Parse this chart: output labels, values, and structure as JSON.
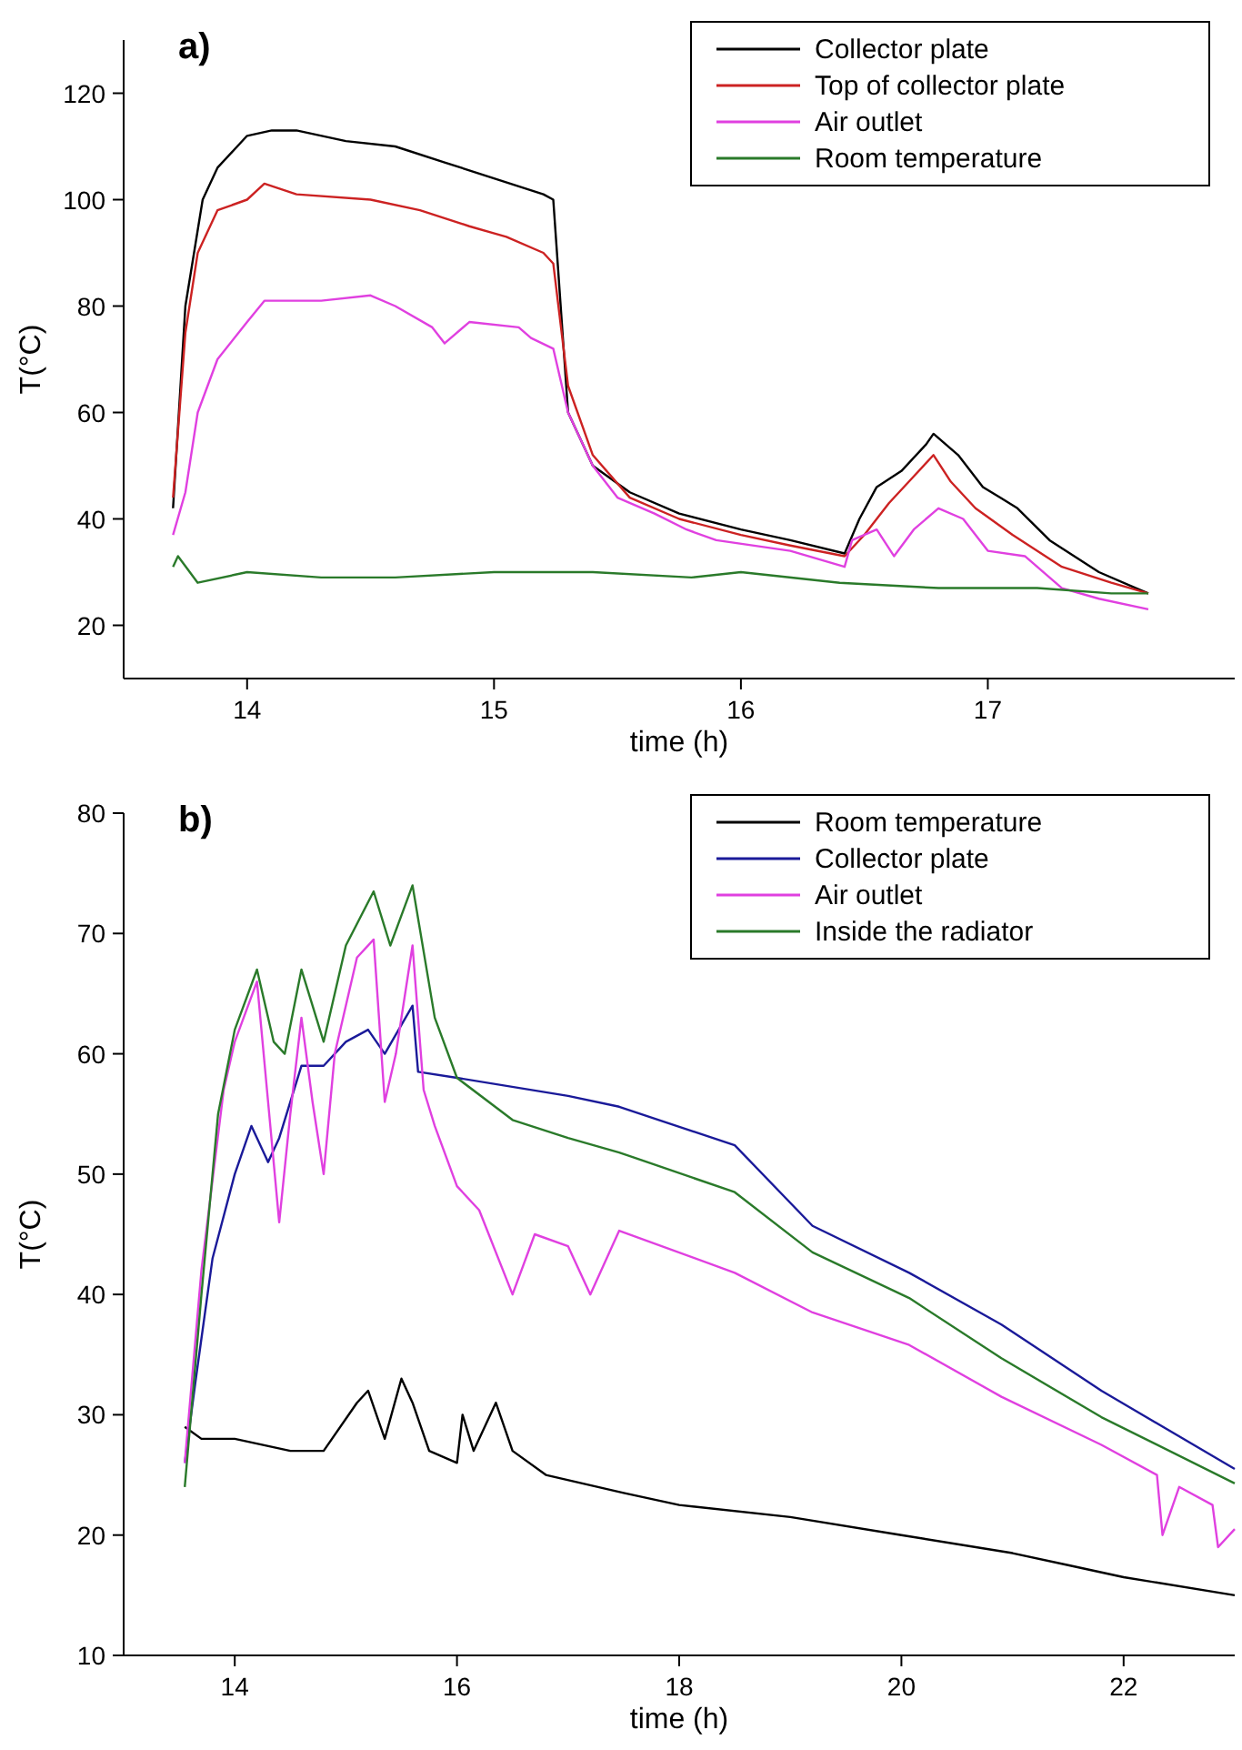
{
  "chart_data": [
    {
      "type": "line",
      "title": "a)",
      "xlabel": "time (h)",
      "ylabel": "T(°C)",
      "xlim": [
        13.5,
        18
      ],
      "ylim": [
        10,
        130
      ],
      "xticks": [
        14,
        15,
        16,
        17
      ],
      "yticks": [
        20,
        40,
        60,
        80,
        100,
        120
      ],
      "legend": "top right",
      "grid": false,
      "series": [
        {
          "name": "Collector plate",
          "color": "#000000",
          "x": [
            13.7,
            13.75,
            13.82,
            13.88,
            14.0,
            14.1,
            14.2,
            14.4,
            14.6,
            14.8,
            15.0,
            15.2,
            15.24,
            15.3,
            15.4,
            15.55,
            15.75,
            16.0,
            16.2,
            16.42,
            16.48,
            16.55,
            16.65,
            16.75,
            16.78,
            16.88,
            16.98,
            17.05,
            17.12,
            17.25,
            17.45,
            17.6,
            17.65
          ],
          "values": [
            42,
            80,
            100,
            106,
            112,
            113,
            113,
            111,
            110,
            107,
            104,
            101,
            100,
            60,
            50,
            45,
            41,
            38,
            36,
            33.5,
            40,
            46,
            49,
            54,
            56,
            52,
            46,
            44,
            42,
            36,
            30,
            27,
            26
          ]
        },
        {
          "name": "Top of collector plate",
          "color": "#cc2222",
          "x": [
            13.7,
            13.75,
            13.8,
            13.88,
            14.0,
            14.07,
            14.2,
            14.5,
            14.7,
            14.9,
            15.05,
            15.2,
            15.24,
            15.3,
            15.4,
            15.55,
            15.75,
            16.0,
            16.2,
            16.42,
            16.5,
            16.6,
            16.7,
            16.78,
            16.85,
            16.95,
            17.1,
            17.3,
            17.5,
            17.65
          ],
          "values": [
            44,
            75,
            90,
            98,
            100,
            103,
            101,
            100,
            98,
            95,
            93,
            90,
            88,
            65,
            52,
            44,
            40,
            37,
            35,
            33,
            37,
            43,
            48,
            52,
            47,
            42,
            37,
            31,
            28,
            26
          ]
        },
        {
          "name": "Air outlet",
          "color": "#e040e0",
          "x": [
            13.7,
            13.75,
            13.8,
            13.88,
            14.0,
            14.07,
            14.3,
            14.5,
            14.6,
            14.75,
            14.8,
            14.9,
            15.1,
            15.15,
            15.24,
            15.3,
            15.4,
            15.5,
            15.65,
            15.78,
            15.9,
            16.2,
            16.42,
            16.45,
            16.55,
            16.62,
            16.7,
            16.8,
            16.9,
            17.0,
            17.15,
            17.3,
            17.45,
            17.65
          ],
          "values": [
            37,
            45,
            60,
            70,
            77,
            81,
            81,
            82,
            80,
            76,
            73,
            77,
            76,
            74,
            72,
            60,
            50,
            44,
            41,
            38,
            36,
            34,
            31,
            36,
            38,
            33,
            38,
            42,
            40,
            34,
            33,
            27,
            25,
            23
          ]
        },
        {
          "name": "Room temperature",
          "color": "#2a7a2a",
          "x": [
            13.7,
            13.72,
            13.8,
            14.0,
            14.3,
            14.6,
            15.0,
            15.4,
            15.8,
            16.0,
            16.4,
            16.8,
            17.2,
            17.5,
            17.65
          ],
          "values": [
            31,
            33,
            28,
            30,
            29,
            29,
            30,
            30,
            29,
            30,
            28,
            27,
            27,
            26,
            26
          ]
        }
      ]
    },
    {
      "type": "line",
      "title": "b)",
      "xlabel": "time (h)",
      "ylabel": "T(°C)",
      "xlim": [
        13,
        23
      ],
      "ylim": [
        10,
        80
      ],
      "xticks": [
        14,
        16,
        18,
        20,
        22
      ],
      "yticks": [
        10,
        20,
        30,
        40,
        50,
        60,
        70,
        80
      ],
      "legend": "top right",
      "grid": false,
      "series": [
        {
          "name": "Room temperature",
          "color": "#000000",
          "x": [
            13.55,
            13.7,
            14.0,
            14.5,
            14.8,
            15.1,
            15.2,
            15.35,
            15.5,
            15.6,
            15.75,
            16.0,
            16.05,
            16.15,
            16.35,
            16.5,
            16.8,
            17.5,
            18,
            19,
            20,
            21,
            21.5,
            22,
            23
          ],
          "values": [
            29,
            28,
            28,
            27,
            27,
            31,
            32,
            28,
            33,
            31,
            27,
            26,
            30,
            27,
            31,
            27,
            25,
            23.5,
            22.5,
            21.5,
            20,
            18.5,
            17.5,
            16.5,
            15
          ]
        },
        {
          "name": "Collector plate",
          "color": "#1a1a99",
          "x": [
            13.55,
            13.65,
            13.8,
            14.0,
            14.15,
            14.3,
            14.4,
            14.6,
            14.8,
            15.0,
            15.2,
            15.35,
            15.6,
            15.65,
            16.0,
            17.0,
            17.46,
            18.5,
            19.2,
            20.07,
            20.9,
            21.8,
            23
          ],
          "values": [
            26,
            33,
            43,
            50,
            54,
            51,
            53,
            59,
            59,
            61,
            62,
            60,
            64,
            58.5,
            58,
            56.5,
            55.6,
            52.4,
            45.7,
            41.8,
            37.5,
            32,
            25.5
          ]
        },
        {
          "name": "Air outlet",
          "color": "#e040e0",
          "x": [
            13.55,
            13.7,
            13.9,
            14.0,
            14.2,
            14.3,
            14.4,
            14.5,
            14.6,
            14.7,
            14.8,
            14.9,
            15.1,
            15.25,
            15.35,
            15.45,
            15.6,
            15.7,
            15.8,
            16.0,
            16.2,
            16.5,
            16.7,
            17.0,
            17.2,
            17.46,
            18.5,
            19.2,
            20.07,
            20.9,
            21.8,
            22.3,
            22.35,
            22.5,
            22.8,
            22.85,
            23
          ],
          "values": [
            26,
            42,
            57,
            61,
            66,
            56,
            46,
            55,
            63,
            56,
            50,
            60,
            68,
            69.5,
            56,
            60,
            69,
            57,
            54,
            49,
            47,
            40,
            45,
            44,
            40,
            45.3,
            41.8,
            38.5,
            35.8,
            31.5,
            27.5,
            25,
            20,
            24,
            22.5,
            19,
            20.5
          ]
        },
        {
          "name": "Inside the radiator",
          "color": "#2a7a2a",
          "x": [
            13.55,
            13.7,
            13.85,
            14.0,
            14.2,
            14.35,
            14.45,
            14.6,
            14.8,
            15.0,
            15.25,
            15.4,
            15.6,
            15.8,
            16.0,
            16.5,
            17.0,
            17.46,
            18.5,
            19.2,
            20.07,
            20.9,
            21.8,
            23
          ],
          "values": [
            24,
            40,
            55,
            62,
            67,
            61,
            60,
            67,
            61,
            69,
            73.5,
            69,
            74,
            63,
            58,
            54.5,
            53,
            51.8,
            48.5,
            43.5,
            39.7,
            34.7,
            29.8,
            24.3
          ]
        }
      ]
    }
  ]
}
